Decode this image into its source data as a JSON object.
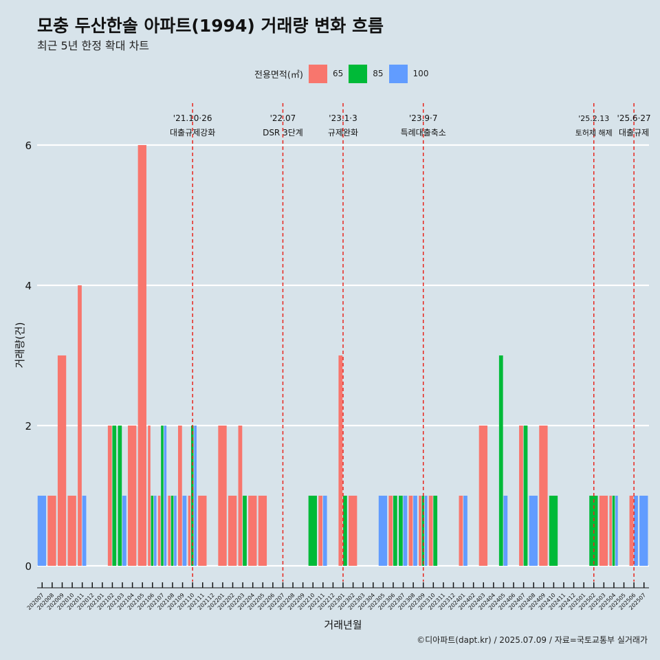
{
  "title": "모충 두산한솔 아파트(1994) 거래량 변화 흐름",
  "subtitle": "최근 5년 한정 확대 차트",
  "caption": "©디아파트(dapt.kr) / 2025.07.09 / 자료=국토교통부 실거래가",
  "legend": {
    "title": "전용면적(㎡)",
    "items": [
      {
        "label": "65",
        "color": "#f8766d"
      },
      {
        "label": "85",
        "color": "#00ba38"
      },
      {
        "label": "100",
        "color": "#619cff"
      }
    ]
  },
  "chart_data": {
    "type": "bar",
    "xlabel": "거래년월",
    "ylabel": "거래량(건)",
    "ylim": [
      0,
      6.3
    ],
    "yticks": [
      0,
      2,
      4,
      6
    ],
    "grid": true,
    "legend_position": "top",
    "categories": [
      "202007",
      "202008",
      "202009",
      "202010",
      "202011",
      "202012",
      "202101",
      "202102",
      "202103",
      "202104",
      "202105",
      "202106",
      "202107",
      "202108",
      "202109",
      "202110",
      "202111",
      "202112",
      "202201",
      "202202",
      "202203",
      "202204",
      "202205",
      "202206",
      "202207",
      "202208",
      "202209",
      "202210",
      "202211",
      "202212",
      "202301",
      "202302",
      "202303",
      "202304",
      "202305",
      "202306",
      "202307",
      "202308",
      "202309",
      "202310",
      "202311",
      "202312",
      "202401",
      "202402",
      "202403",
      "202404",
      "202405",
      "202406",
      "202407",
      "202408",
      "202409",
      "202410",
      "202411",
      "202412",
      "202501",
      "202502",
      "202503",
      "202504",
      "202505",
      "202506",
      "202507"
    ],
    "tick_labels": [
      "202007",
      "202008",
      "202009",
      "202010",
      "202011",
      "202012",
      "202101",
      "202102",
      "202103",
      "202104",
      "202105",
      "202106",
      "202107",
      "202108",
      "202109",
      "202110",
      "202111",
      "202112",
      "202201",
      "202202",
      "202203",
      "202204",
      "202205",
      "202206",
      "202207",
      "202208",
      "202209",
      "202210",
      "202211",
      "202212",
      "202301",
      "202302",
      "202303",
      "202304",
      "202305",
      "202306",
      "202307",
      "202308",
      "202309",
      "202310",
      "202311",
      "202312",
      "202401",
      "202402",
      "202403",
      "202404",
      "202405",
      "202406",
      "202407",
      "202408",
      "202409",
      "202410",
      "202411",
      "202412",
      "202501",
      "202502",
      "202503",
      "202504",
      "202505",
      "202506",
      "202507"
    ],
    "series": [
      {
        "name": "65",
        "color": "#f8766d",
        "values": [
          0,
          1,
          3,
          1,
          4,
          0,
          0,
          2,
          0,
          2,
          6,
          2,
          1,
          1,
          2,
          1,
          1,
          0,
          2,
          1,
          2,
          1,
          1,
          0,
          0,
          0,
          0,
          0,
          1,
          0,
          3,
          1,
          0,
          0,
          0,
          1,
          0,
          1,
          1,
          1,
          0,
          0,
          1,
          0,
          2,
          0,
          0,
          0,
          2,
          0,
          2,
          0,
          0,
          0,
          0,
          0,
          1,
          1,
          0,
          1,
          0
        ]
      },
      {
        "name": "85",
        "color": "#00ba38",
        "values": [
          0,
          0,
          0,
          0,
          0,
          0,
          0,
          2,
          2,
          0,
          0,
          1,
          2,
          1,
          0,
          2,
          0,
          0,
          0,
          0,
          1,
          0,
          0,
          0,
          0,
          0,
          0,
          1,
          0,
          0,
          1,
          0,
          0,
          0,
          0,
          1,
          1,
          0,
          1,
          1,
          0,
          0,
          0,
          0,
          0,
          0,
          3,
          0,
          2,
          0,
          0,
          1,
          0,
          0,
          0,
          1,
          0,
          1,
          0,
          0,
          0
        ]
      },
      {
        "name": "100",
        "color": "#619cff",
        "values": [
          1,
          0,
          0,
          0,
          1,
          0,
          0,
          0,
          1,
          0,
          0,
          1,
          2,
          1,
          1,
          2,
          0,
          0,
          0,
          0,
          0,
          0,
          0,
          0,
          0,
          0,
          0,
          0,
          1,
          0,
          0,
          0,
          0,
          0,
          1,
          0,
          1,
          1,
          1,
          0,
          0,
          0,
          1,
          0,
          0,
          0,
          1,
          0,
          0,
          1,
          0,
          0,
          0,
          0,
          0,
          0,
          0,
          1,
          0,
          1,
          1
        ]
      }
    ],
    "annotations": [
      {
        "month": "202110",
        "date": "'21.10·26",
        "text": "대출규제강화"
      },
      {
        "month": "202207",
        "date": "'22.07",
        "text": "DSR 3단계"
      },
      {
        "month": "202301",
        "date": "'23.1·3",
        "text": "규제완화"
      },
      {
        "month": "202309",
        "date": "'23.9·7",
        "text": "특례대출축소"
      },
      {
        "month": "202502",
        "date": "'25.2.13",
        "text": "토허제 해제"
      },
      {
        "month": "202506",
        "date": "'25.6·27",
        "text": "대출규제"
      }
    ]
  }
}
